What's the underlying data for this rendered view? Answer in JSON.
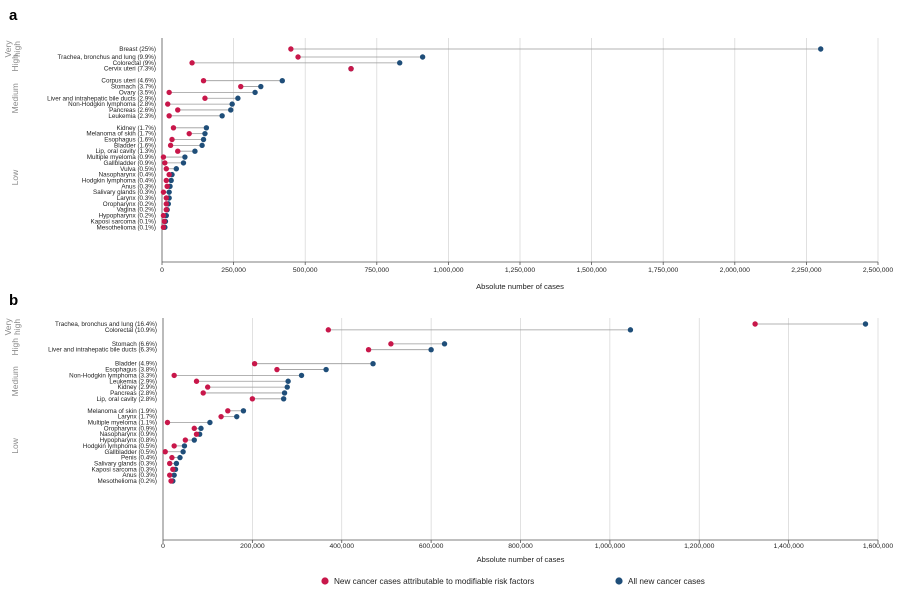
{
  "colors": {
    "attributable": "#c8174a",
    "total": "#1f4e79",
    "connector": "#9a9a9a",
    "grid": "#d4d4d4"
  },
  "legend": {
    "attributable_label": "New cancer cases attributable to modifiable risk factors",
    "total_label": "All new cancer cases"
  },
  "chart_data": [
    {
      "panel": "a",
      "type": "dumbbell",
      "xlabel": "Absolute number of cases",
      "xlim": [
        0,
        2500000
      ],
      "xticks": [
        0,
        250000,
        500000,
        750000,
        1000000,
        1250000,
        1500000,
        1750000,
        2000000,
        2250000,
        2500000
      ],
      "xtick_labels": [
        "0",
        "250,000",
        "500,000",
        "750,000",
        "1,000,000",
        "1,250,000",
        "1,500,000",
        "1,750,000",
        "2,000,000",
        "2,250,000",
        "2,500,000"
      ],
      "grid": true,
      "groups": [
        {
          "label": "Very high",
          "items": [
            {
              "name": "Breast (25%)",
              "attributable": 450000,
              "total": 2300000
            }
          ]
        },
        {
          "label": "High",
          "items": [
            {
              "name": "Trachea, bronchus and lung (9.9%)",
              "attributable": 475000,
              "total": 910000
            },
            {
              "name": "Colorectal (9%)",
              "attributable": 105000,
              "total": 830000
            },
            {
              "name": "Cervix uteri (7.3%)",
              "attributable": 660000,
              "total": 660000
            }
          ]
        },
        {
          "label": "Medium",
          "items": [
            {
              "name": "Corpus uteri (4.6%)",
              "attributable": 145000,
              "total": 420000
            },
            {
              "name": "Stomach (3.7%)",
              "attributable": 275000,
              "total": 345000
            },
            {
              "name": "Ovary (3.5%)",
              "attributable": 25000,
              "total": 325000
            },
            {
              "name": "Liver and intrahepatic bile ducts (2.9%)",
              "attributable": 150000,
              "total": 265000
            },
            {
              "name": "Non-Hodgkin lymphoma (2.8%)",
              "attributable": 20000,
              "total": 245000
            },
            {
              "name": "Pancreas (2.6%)",
              "attributable": 55000,
              "total": 240000
            },
            {
              "name": "Leukemia (2.3%)",
              "attributable": 25000,
              "total": 210000
            }
          ]
        },
        {
          "label": "Low",
          "items": [
            {
              "name": "Kidney (1.7%)",
              "attributable": 40000,
              "total": 155000
            },
            {
              "name": "Melanoma of skin (1.7%)",
              "attributable": 95000,
              "total": 150000
            },
            {
              "name": "Esophagus (1.6%)",
              "attributable": 35000,
              "total": 145000
            },
            {
              "name": "Bladder (1.6%)",
              "attributable": 30000,
              "total": 140000
            },
            {
              "name": "Lip, oral cavity (1.3%)",
              "attributable": 55000,
              "total": 115000
            },
            {
              "name": "Multiple myeloma (0.9%)",
              "attributable": 5000,
              "total": 80000
            },
            {
              "name": "Gallbladder (0.9%)",
              "attributable": 10000,
              "total": 75000
            },
            {
              "name": "Vulva (0.5%)",
              "attributable": 15000,
              "total": 50000
            },
            {
              "name": "Nasopharynx (0.4%)",
              "attributable": 25000,
              "total": 35000
            },
            {
              "name": "Hodgkin lymphoma (0.4%)",
              "attributable": 15000,
              "total": 32000
            },
            {
              "name": "Anus (0.3%)",
              "attributable": 18000,
              "total": 28000
            },
            {
              "name": "Salivary glands (0.3%)",
              "attributable": 5000,
              "total": 25000
            },
            {
              "name": "Larynx (0.3%)",
              "attributable": 15000,
              "total": 25000
            },
            {
              "name": "Oropharynx (0.2%)",
              "attributable": 15000,
              "total": 22000
            },
            {
              "name": "Vagina (0.2%)",
              "attributable": 15000,
              "total": 18000
            },
            {
              "name": "Hypopharynx (0.2%)",
              "attributable": 5000,
              "total": 15000
            },
            {
              "name": "Kaposi sarcoma (0.1%)",
              "attributable": 8000,
              "total": 12000
            },
            {
              "name": "Mesothelioma (0.1%)",
              "attributable": 5000,
              "total": 10000
            }
          ]
        }
      ]
    },
    {
      "panel": "b",
      "type": "dumbbell",
      "xlabel": "Absolute number of cases",
      "xlim": [
        0,
        1600000
      ],
      "xticks": [
        0,
        200000,
        400000,
        600000,
        800000,
        1000000,
        1200000,
        1400000,
        1600000
      ],
      "xtick_labels": [
        "0",
        "200,000",
        "400,000",
        "600,000",
        "800,000",
        "1,000,000",
        "1,200,000",
        "1,400,000",
        "1,600,000"
      ],
      "grid": true,
      "groups": [
        {
          "label": "Very high",
          "items": [
            {
              "name": "Trachea, bronchus and lung (16.4%)",
              "attributable": 1325000,
              "total": 1572000
            },
            {
              "name": "Colorectal (10.9%)",
              "attributable": 370000,
              "total": 1046000
            }
          ]
        },
        {
          "label": "High",
          "items": [
            {
              "name": "Stomach (6.6%)",
              "attributable": 510000,
              "total": 630000
            },
            {
              "name": "Liver and intrahepatic bile ducts (6.3%)",
              "attributable": 460000,
              "total": 600000
            }
          ]
        },
        {
          "label": "Medium",
          "items": [
            {
              "name": "Bladder (4.9%)",
              "attributable": 205000,
              "total": 470000
            },
            {
              "name": "Esophagus (3.8%)",
              "attributable": 255000,
              "total": 365000
            },
            {
              "name": "Non-Hodgkin lymphoma (3.3%)",
              "attributable": 25000,
              "total": 310000
            },
            {
              "name": "Leukemia (2.9%)",
              "attributable": 75000,
              "total": 280000
            },
            {
              "name": "Kidney (2.9%)",
              "attributable": 100000,
              "total": 278000
            },
            {
              "name": "Pancreas (2.8%)",
              "attributable": 90000,
              "total": 272000
            },
            {
              "name": "Lip, oral cavity (2.8%)",
              "attributable": 200000,
              "total": 270000
            }
          ]
        },
        {
          "label": "Low",
          "items": [
            {
              "name": "Melanoma of skin (1.9%)",
              "attributable": 145000,
              "total": 180000
            },
            {
              "name": "Larynx (1.7%)",
              "attributable": 130000,
              "total": 165000
            },
            {
              "name": "Multiple myeloma (1.1%)",
              "attributable": 10000,
              "total": 105000
            },
            {
              "name": "Oropharynx (0.9%)",
              "attributable": 70000,
              "total": 85000
            },
            {
              "name": "Nasopharynx (0.9%)",
              "attributable": 75000,
              "total": 82000
            },
            {
              "name": "Hypopharynx (0.8%)",
              "attributable": 50000,
              "total": 70000
            },
            {
              "name": "Hodgkin lymphoma (0.5%)",
              "attributable": 25000,
              "total": 48000
            },
            {
              "name": "Gallbladder (0.5%)",
              "attributable": 5000,
              "total": 45000
            },
            {
              "name": "Penis (0.4%)",
              "attributable": 20000,
              "total": 38000
            },
            {
              "name": "Salivary glands (0.3%)",
              "attributable": 15000,
              "total": 30000
            },
            {
              "name": "Kaposi sarcoma (0.3%)",
              "attributable": 22000,
              "total": 28000
            },
            {
              "name": "Anus (0.3%)",
              "attributable": 15000,
              "total": 25000
            },
            {
              "name": "Mesothelioma (0.2%)",
              "attributable": 18000,
              "total": 22000
            }
          ]
        }
      ]
    }
  ]
}
